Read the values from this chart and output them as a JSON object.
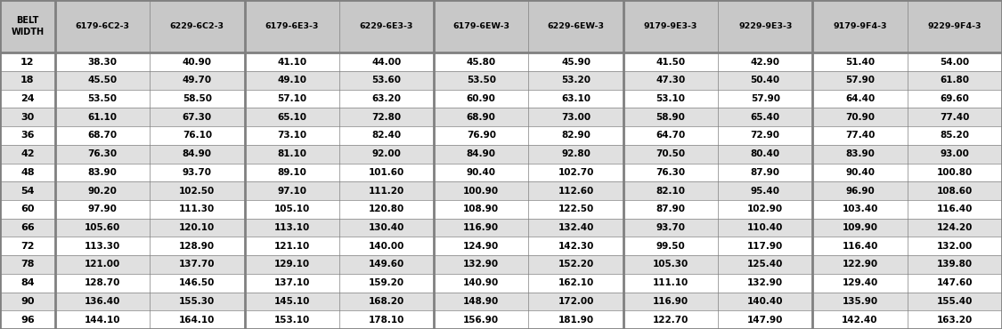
{
  "headers": [
    "BELT\nWIDTH",
    "6179-6C2-3",
    "6229-6C2-3",
    "6179-6E3-3",
    "6229-6E3-3",
    "6179-6EW-3",
    "6229-6EW-3",
    "9179-9E3-3",
    "9229-9E3-3",
    "9179-9F4-3",
    "9229-9F4-3"
  ],
  "belt_widths": [
    12,
    18,
    24,
    30,
    36,
    42,
    48,
    54,
    60,
    66,
    72,
    78,
    84,
    90,
    96
  ],
  "data": [
    [
      38.3,
      40.9,
      41.1,
      44.0,
      45.8,
      45.9,
      41.5,
      42.9,
      51.4,
      54.0
    ],
    [
      45.5,
      49.7,
      49.1,
      53.6,
      53.5,
      53.2,
      47.3,
      50.4,
      57.9,
      61.8
    ],
    [
      53.5,
      58.5,
      57.1,
      63.2,
      60.9,
      63.1,
      53.1,
      57.9,
      64.4,
      69.6
    ],
    [
      61.1,
      67.3,
      65.1,
      72.8,
      68.9,
      73.0,
      58.9,
      65.4,
      70.9,
      77.4
    ],
    [
      68.7,
      76.1,
      73.1,
      82.4,
      76.9,
      82.9,
      64.7,
      72.9,
      77.4,
      85.2
    ],
    [
      76.3,
      84.9,
      81.1,
      92.0,
      84.9,
      92.8,
      70.5,
      80.4,
      83.9,
      93.0
    ],
    [
      83.9,
      93.7,
      89.1,
      101.6,
      90.4,
      102.7,
      76.3,
      87.9,
      90.4,
      100.8
    ],
    [
      90.2,
      102.5,
      97.1,
      111.2,
      100.9,
      112.6,
      82.1,
      95.4,
      96.9,
      108.6
    ],
    [
      97.9,
      111.3,
      105.1,
      120.8,
      108.9,
      122.5,
      87.9,
      102.9,
      103.4,
      116.4
    ],
    [
      105.6,
      120.1,
      113.1,
      130.4,
      116.9,
      132.4,
      93.7,
      110.4,
      109.9,
      124.2
    ],
    [
      113.3,
      128.9,
      121.1,
      140.0,
      124.9,
      142.3,
      99.5,
      117.9,
      116.4,
      132.0
    ],
    [
      121.0,
      137.7,
      129.1,
      149.6,
      132.9,
      152.2,
      105.3,
      125.4,
      122.9,
      139.8
    ],
    [
      128.7,
      146.5,
      137.1,
      159.2,
      140.9,
      162.1,
      111.1,
      132.9,
      129.4,
      147.6
    ],
    [
      136.4,
      155.3,
      145.1,
      168.2,
      148.9,
      172.0,
      116.9,
      140.4,
      135.9,
      155.4
    ],
    [
      144.1,
      164.1,
      153.1,
      178.1,
      156.9,
      181.9,
      122.7,
      147.9,
      142.4,
      163.2
    ]
  ],
  "bg_color_header": "#c8c8c8",
  "bg_color_row_odd": "#ffffff",
  "bg_color_row_even": "#e0e0e0",
  "text_color": "#000000",
  "border_color": "#808080",
  "thick_border_indices": [
    0,
    1,
    3,
    5,
    7,
    9,
    11
  ],
  "figsize": [
    11.25,
    3.7
  ],
  "dpi": 100
}
